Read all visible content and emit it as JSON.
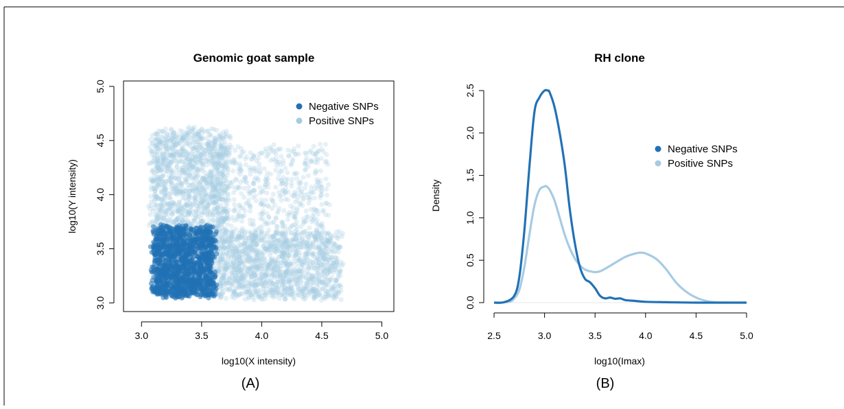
{
  "panels": [
    {
      "caption": "(A)",
      "chart_data": {
        "type": "scatter",
        "title": "Genomic goat sample",
        "xlabel": "log10(X intensity)",
        "ylabel": "log10(Y intensity)",
        "xlim": [
          2.85,
          5.1
        ],
        "ylim": [
          2.92,
          5.05
        ],
        "xticks": [
          3.0,
          3.5,
          4.0,
          4.5,
          5.0
        ],
        "xtick_labels": [
          "3.0",
          "3.5",
          "4.0",
          "4.5",
          "5.0"
        ],
        "yticks": [
          3.0,
          3.5,
          4.0,
          4.5,
          5.0
        ],
        "ytick_labels": [
          "3.0",
          "3.5",
          "4.0",
          "4.5",
          "5.0"
        ],
        "legend_position": "top-right",
        "series": [
          {
            "name": "Negative SNPs",
            "color": "#2171b5",
            "clusters": [
              {
                "x_range": [
                  3.1,
                  3.6
                ],
                "y_range": [
                  3.06,
                  3.7
                ],
                "count": 1400
              }
            ]
          },
          {
            "name": "Positive SNPs",
            "color": "#a6cbe3",
            "clusters": [
              {
                "x_range": [
                  3.08,
                  3.72
                ],
                "y_range": [
                  3.65,
                  4.6
                ],
                "count": 1300
              },
              {
                "x_range": [
                  3.55,
                  4.65
                ],
                "y_range": [
                  3.05,
                  3.65
                ],
                "count": 1600
              },
              {
                "x_range": [
                  3.62,
                  4.55
                ],
                "y_range": [
                  3.65,
                  4.45
                ],
                "count": 500
              }
            ]
          }
        ]
      }
    },
    {
      "caption": "(B)",
      "chart_data": {
        "type": "line",
        "title": "RH clone",
        "xlabel": "log10(Imax)",
        "ylabel": "Density",
        "xlim": [
          2.5,
          5.0
        ],
        "ylim": [
          0,
          2.5
        ],
        "xticks": [
          2.5,
          3.0,
          3.5,
          4.0,
          4.5,
          5.0
        ],
        "xtick_labels": [
          "2.5",
          "3.0",
          "3.5",
          "4.0",
          "4.5",
          "5.0"
        ],
        "yticks": [
          0.0,
          0.5,
          1.0,
          1.5,
          2.0,
          2.5
        ],
        "ytick_labels": [
          "0.0",
          "0.5",
          "1.0",
          "1.5",
          "2.0",
          "2.5"
        ],
        "legend_position": "right",
        "series": [
          {
            "name": "Negative SNPs",
            "color": "#2171b5",
            "x": [
              2.5,
              2.6,
              2.7,
              2.75,
              2.8,
              2.85,
              2.9,
              2.95,
              3.0,
              3.03,
              3.05,
              3.1,
              3.15,
              3.2,
              3.25,
              3.3,
              3.35,
              3.4,
              3.45,
              3.5,
              3.55,
              3.6,
              3.65,
              3.7,
              3.75,
              3.8,
              3.9,
              4.0,
              4.2,
              4.5,
              5.0
            ],
            "y": [
              0.0,
              0.005,
              0.08,
              0.3,
              0.85,
              1.6,
              2.25,
              2.42,
              2.5,
              2.5,
              2.48,
              2.3,
              2.0,
              1.62,
              1.1,
              0.7,
              0.42,
              0.28,
              0.24,
              0.17,
              0.08,
              0.05,
              0.06,
              0.045,
              0.05,
              0.03,
              0.02,
              0.01,
              0.005,
              0.0,
              0.0
            ]
          },
          {
            "name": "Positive SNPs",
            "color": "#a6cbe3",
            "x": [
              2.5,
              2.65,
              2.7,
              2.75,
              2.8,
              2.85,
              2.9,
              2.95,
              3.0,
              3.02,
              3.05,
              3.1,
              3.15,
              3.2,
              3.25,
              3.3,
              3.35,
              3.4,
              3.45,
              3.5,
              3.55,
              3.6,
              3.7,
              3.8,
              3.9,
              3.95,
              4.0,
              4.1,
              4.2,
              4.3,
              4.4,
              4.5,
              4.6,
              4.7,
              5.0
            ],
            "y": [
              0.0,
              0.01,
              0.05,
              0.15,
              0.42,
              0.8,
              1.15,
              1.33,
              1.37,
              1.37,
              1.33,
              1.2,
              1.0,
              0.8,
              0.64,
              0.52,
              0.44,
              0.39,
              0.37,
              0.36,
              0.37,
              0.4,
              0.47,
              0.54,
              0.58,
              0.59,
              0.58,
              0.52,
              0.4,
              0.24,
              0.13,
              0.06,
              0.02,
              0.005,
              0.0
            ]
          }
        ]
      }
    }
  ]
}
